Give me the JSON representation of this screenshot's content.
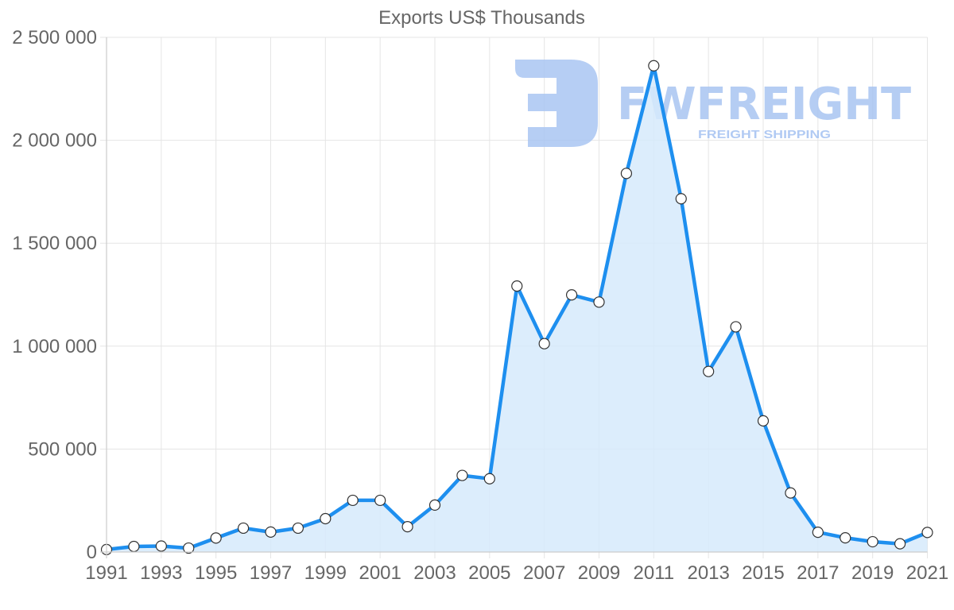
{
  "chart_data": {
    "type": "line",
    "title": "Exports US$ Thousands",
    "xlabel": "",
    "ylabel": "",
    "ylim": [
      0,
      2500000
    ],
    "grid": true,
    "legend": null,
    "filled_area": true,
    "x": [
      1991,
      1992,
      1993,
      1994,
      1995,
      1996,
      1997,
      1998,
      1999,
      2000,
      2001,
      2002,
      2003,
      2004,
      2005,
      2006,
      2007,
      2008,
      2009,
      2010,
      2011,
      2012,
      2013,
      2014,
      2015,
      2016,
      2017,
      2018,
      2019,
      2020,
      2021
    ],
    "series": [
      {
        "name": "Exports US$ Thousands",
        "values": [
          12000,
          27000,
          29000,
          19000,
          68000,
          116000,
          97000,
          116000,
          162000,
          251000,
          251000,
          123000,
          228000,
          372000,
          356000,
          1292000,
          1012000,
          1249000,
          1214000,
          1839000,
          2362000,
          1716000,
          877000,
          1094000,
          637000,
          287000,
          96000,
          69000,
          50000,
          40000,
          95000
        ]
      }
    ],
    "y_ticks": [
      {
        "value": 0,
        "label": "0"
      },
      {
        "value": 500000,
        "label": "500 000"
      },
      {
        "value": 1000000,
        "label": "1 000 000"
      },
      {
        "value": 1500000,
        "label": "1 500 000"
      },
      {
        "value": 2000000,
        "label": "2 000 000"
      },
      {
        "value": 2500000,
        "label": "2 500 000"
      }
    ],
    "x_tick_labels": [
      "1991",
      "1993",
      "1995",
      "1997",
      "1999",
      "2001",
      "2003",
      "2005",
      "2007",
      "2009",
      "2011",
      "2013",
      "2015",
      "2017",
      "2019",
      "2021"
    ],
    "colors": {
      "line": "#1e8fef",
      "fill": "#d6eafc",
      "point_fill": "#ffffff",
      "point_stroke": "#333333",
      "grid": "#e5e5e5",
      "axis": "#cccccc",
      "text": "#666666"
    }
  },
  "watermark": {
    "brand": "FWFREIGHT",
    "tagline": "FREIGHT SHIPPING",
    "color": "#a9c5f2"
  }
}
